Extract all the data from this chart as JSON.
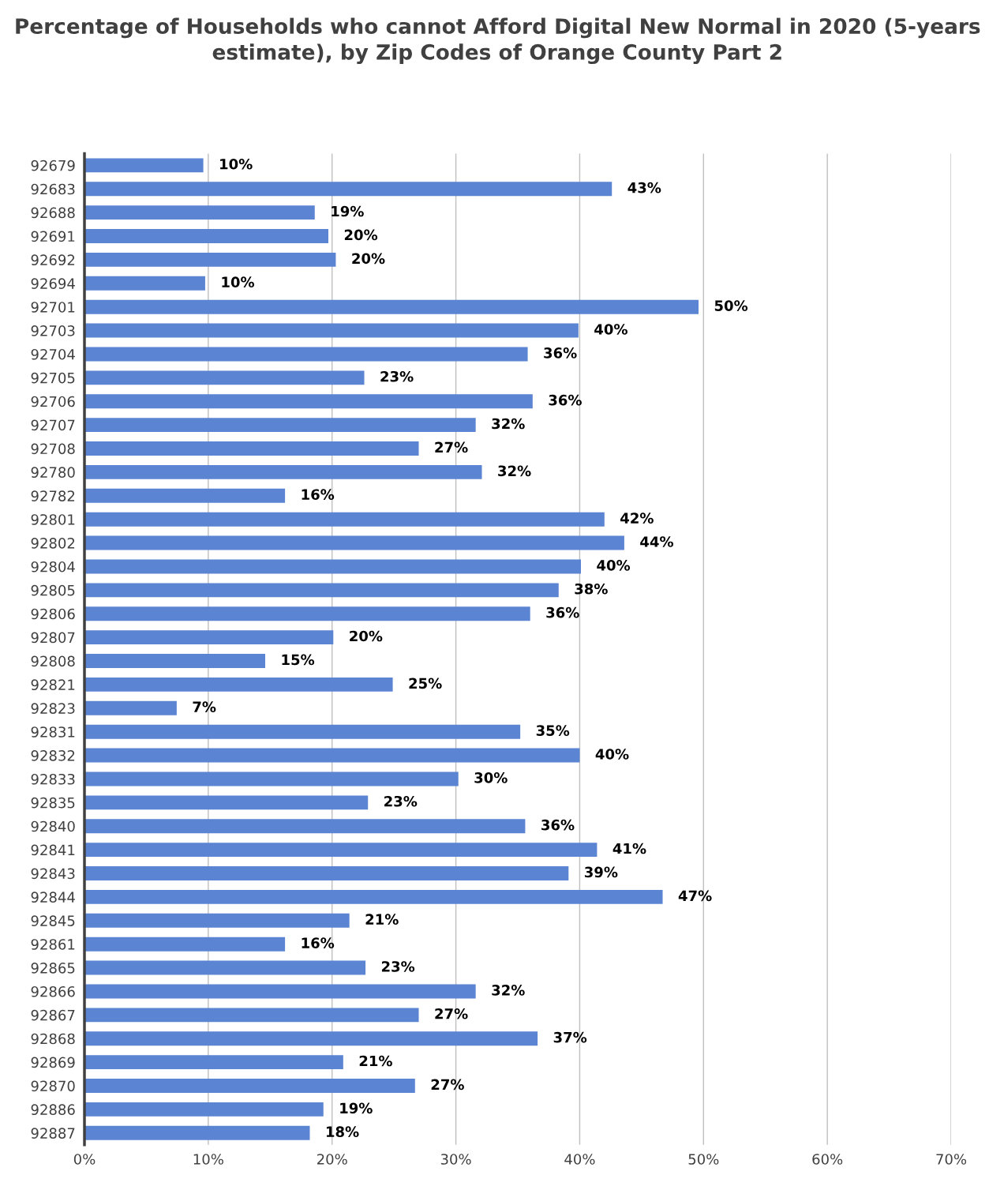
{
  "chart_data": {
    "type": "bar",
    "orientation": "horizontal",
    "title": "Percentage of Households who cannot Afford Digital New Normal in 2020 (5-years estimate), by Zip Codes of Orange County Part 2",
    "categories": [
      "92679",
      "92683",
      "92688",
      "92691",
      "92692",
      "92694",
      "92701",
      "92703",
      "92704",
      "92705",
      "92706",
      "92707",
      "92708",
      "92780",
      "92782",
      "92801",
      "92802",
      "92804",
      "92805",
      "92806",
      "92807",
      "92808",
      "92821",
      "92823",
      "92831",
      "92832",
      "92833",
      "92835",
      "92840",
      "92841",
      "92843",
      "92844",
      "92845",
      "92861",
      "92865",
      "92866",
      "92867",
      "92868",
      "92869",
      "92870",
      "92886",
      "92887"
    ],
    "values": [
      9.6,
      42.6,
      18.6,
      19.7,
      20.3,
      9.75,
      49.6,
      39.9,
      35.8,
      22.6,
      36.2,
      31.6,
      27.0,
      32.1,
      16.2,
      42.0,
      43.6,
      40.1,
      38.3,
      36.0,
      20.1,
      14.6,
      24.9,
      7.45,
      35.2,
      40.0,
      30.2,
      22.9,
      35.6,
      41.4,
      39.1,
      46.7,
      21.4,
      16.2,
      22.7,
      31.6,
      27.0,
      36.6,
      20.9,
      26.7,
      19.3,
      18.2
    ],
    "value_labels": [
      "10%",
      "43%",
      "19%",
      "20%",
      "20%",
      "10%",
      "50%",
      "40%",
      "36%",
      "23%",
      "36%",
      "32%",
      "27%",
      "32%",
      "16%",
      "42%",
      "44%",
      "40%",
      "38%",
      "36%",
      "20%",
      "15%",
      "25%",
      "7%",
      "35%",
      "40%",
      "30%",
      "23%",
      "36%",
      "41%",
      "39%",
      "47%",
      "21%",
      "16%",
      "23%",
      "32%",
      "27%",
      "37%",
      "21%",
      "27%",
      "19%",
      "18%"
    ],
    "color": "#5b84d3",
    "xlim": [
      0,
      70
    ],
    "xticks": [
      {
        "value": 0,
        "label": "0%"
      },
      {
        "value": 10,
        "label": "10%"
      },
      {
        "value": 20,
        "label": "20%"
      },
      {
        "value": 30,
        "label": "30%"
      },
      {
        "value": 40,
        "label": "40%"
      },
      {
        "value": 50,
        "label": "50%"
      },
      {
        "value": 60,
        "label": "60%"
      },
      {
        "value": 70,
        "label": "70%"
      }
    ],
    "grid": "x"
  }
}
